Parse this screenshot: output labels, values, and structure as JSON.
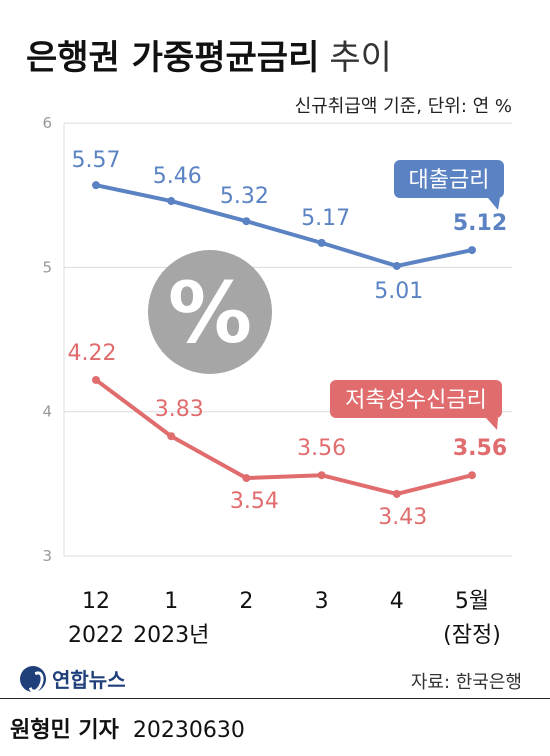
{
  "header": {
    "title_main": "은행권 가중평균금리",
    "title_sub": "추이",
    "unit_note": "신규취급액 기준, 단위: 연 %"
  },
  "chart_data": {
    "type": "line",
    "categories": [
      "12\n2022",
      "1\n2023년",
      "2",
      "3",
      "4",
      "5월\n(잠정)"
    ],
    "series": [
      {
        "name": "대출금리",
        "values": [
          5.57,
          5.46,
          5.32,
          5.17,
          5.01,
          5.12
        ],
        "color": "#5b83c3",
        "value_labels": [
          "5.57",
          "5.46",
          "5.32",
          "5.17",
          "5.01",
          "5.12"
        ]
      },
      {
        "name": "저축성수신금리",
        "values": [
          4.22,
          3.83,
          3.54,
          3.56,
          3.43,
          3.56
        ],
        "color": "#e06c6e",
        "value_labels": [
          "4.22",
          "3.83",
          "3.54",
          "3.56",
          "3.43",
          "3.56"
        ]
      }
    ],
    "ylim": [
      3,
      6
    ],
    "yticks": [
      "6",
      "5",
      "4",
      "3"
    ],
    "grid": true,
    "decoration": {
      "icon": "percent-icon",
      "text": "%",
      "color": "#a6a6a6"
    },
    "title": "",
    "xlabel": "",
    "ylabel": ""
  },
  "footer": {
    "brand": "연합뉴스",
    "source": "자료: 한국은행",
    "reporter": "원형민 기자",
    "date": "20230630"
  }
}
